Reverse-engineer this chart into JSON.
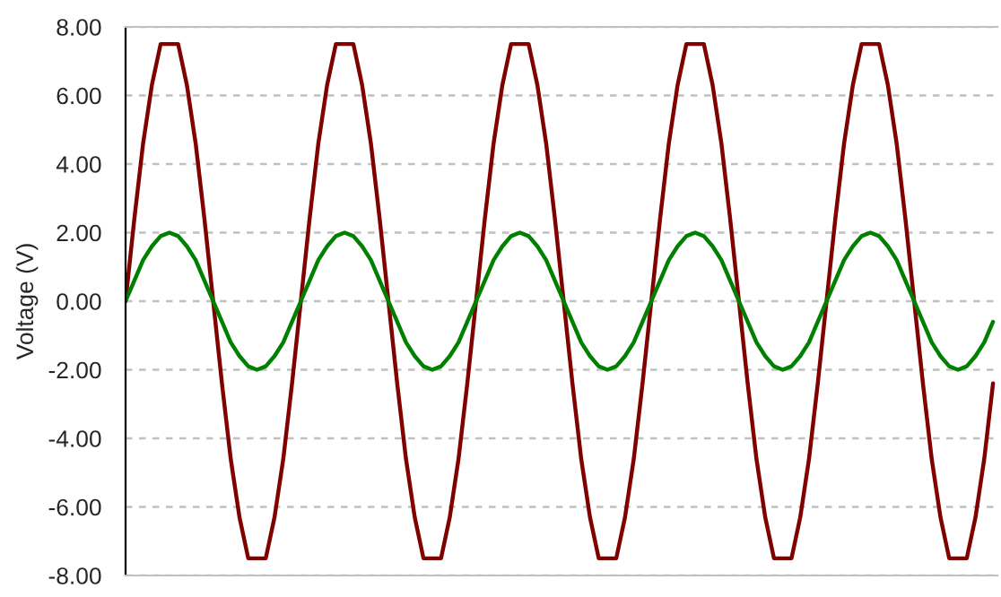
{
  "chart_data": {
    "type": "line",
    "ylabel": "Voltage (V)",
    "categories": [
      null,
      null,
      null,
      null,
      null,
      null,
      null,
      null,
      null,
      null,
      null,
      null,
      null,
      null,
      null,
      null,
      null,
      null,
      null,
      null,
      null,
      null,
      null,
      null,
      null,
      null,
      null,
      null,
      null,
      null,
      null,
      null,
      null,
      null,
      null,
      null,
      null,
      null,
      null,
      null,
      null,
      null,
      null,
      null,
      null,
      null,
      null,
      null,
      null,
      null,
      null,
      null,
      null,
      null,
      null,
      null,
      null,
      null,
      null,
      null,
      null,
      null,
      null,
      null,
      null,
      null,
      null,
      null,
      null,
      null,
      null,
      null,
      null,
      null,
      null,
      null,
      null,
      null,
      null,
      null,
      null,
      null,
      null,
      null,
      null,
      null,
      null,
      null,
      null,
      null,
      null,
      null,
      null,
      null,
      null,
      null,
      null,
      null,
      null,
      null
    ],
    "series": [
      {
        "color": "#800000",
        "values": [
          0,
          2.4,
          4.6,
          6.3,
          7.5,
          7.5,
          7.5,
          6.3,
          4.6,
          2.4,
          0,
          -2.4,
          -4.6,
          -6.3,
          -7.5,
          -7.5,
          -7.5,
          -6.3,
          -4.6,
          -2.4,
          0,
          2.4,
          4.6,
          6.3,
          7.5,
          7.5,
          7.5,
          6.3,
          4.6,
          2.4,
          0,
          -2.4,
          -4.6,
          -6.3,
          -7.5,
          -7.5,
          -7.5,
          -6.3,
          -4.6,
          -2.4,
          0,
          2.4,
          4.6,
          6.3,
          7.5,
          7.5,
          7.5,
          6.3,
          4.6,
          2.4,
          0,
          -2.4,
          -4.6,
          -6.3,
          -7.5,
          -7.5,
          -7.5,
          -6.3,
          -4.6,
          -2.4,
          0,
          2.4,
          4.6,
          6.3,
          7.5,
          7.5,
          7.5,
          6.3,
          4.6,
          2.4,
          0,
          -2.4,
          -4.6,
          -6.3,
          -7.5,
          -7.5,
          -7.5,
          -6.3,
          -4.6,
          -2.4,
          0,
          2.4,
          4.6,
          6.3,
          7.5,
          7.5,
          7.5,
          6.3,
          4.6,
          2.4,
          0,
          -2.4,
          -4.6,
          -6.3,
          -7.5,
          -7.5,
          -7.5,
          -6.3,
          -4.6,
          -2.4
        ]
      },
      {
        "color": "#008000",
        "values": [
          0,
          0.6,
          1.2,
          1.6,
          1.9,
          2,
          1.9,
          1.6,
          1.2,
          0.6,
          0,
          -0.6,
          -1.2,
          -1.6,
          -1.9,
          -2,
          -1.9,
          -1.6,
          -1.2,
          -0.6,
          0,
          0.6,
          1.2,
          1.6,
          1.9,
          2,
          1.9,
          1.6,
          1.2,
          0.6,
          0,
          -0.6,
          -1.2,
          -1.6,
          -1.9,
          -2,
          -1.9,
          -1.6,
          -1.2,
          -0.6,
          0,
          0.6,
          1.2,
          1.6,
          1.9,
          2,
          1.9,
          1.6,
          1.2,
          0.6,
          0,
          -0.6,
          -1.2,
          -1.6,
          -1.9,
          -2,
          -1.9,
          -1.6,
          -1.2,
          -0.6,
          0,
          0.6,
          1.2,
          1.6,
          1.9,
          2,
          1.9,
          1.6,
          1.2,
          0.6,
          0,
          -0.6,
          -1.2,
          -1.6,
          -1.9,
          -2,
          -1.9,
          -1.6,
          -1.2,
          -0.6,
          0,
          0.6,
          1.2,
          1.6,
          1.9,
          2,
          1.9,
          1.6,
          1.2,
          0.6,
          0,
          -0.6,
          -1.2,
          -1.6,
          -1.9,
          -2,
          -1.9,
          -1.6,
          -1.2,
          -0.6
        ]
      }
    ],
    "ylim": [
      -8,
      8
    ],
    "yticks": [
      {
        "value": 8,
        "label": "8.00"
      },
      {
        "value": 6,
        "label": "6.00"
      },
      {
        "value": 4,
        "label": "4.00"
      },
      {
        "value": 2,
        "label": "2.00"
      },
      {
        "value": 0,
        "label": "0.00"
      },
      {
        "value": -2,
        "label": "-2.00"
      },
      {
        "value": -4,
        "label": "-4.00"
      },
      {
        "value": -6,
        "label": "-6.00"
      },
      {
        "value": -8,
        "label": "-8.00"
      }
    ],
    "grid": "y",
    "tick_labels": "y",
    "marker": "none",
    "line_style": "solid",
    "legend": false
  }
}
